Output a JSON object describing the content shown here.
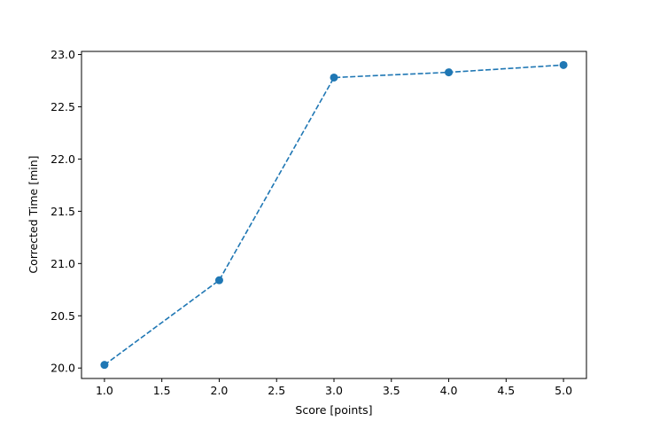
{
  "chart_data": {
    "type": "line",
    "title": "",
    "xlabel": "Score [points]",
    "ylabel": "Corrected Time [min]",
    "x": [
      1,
      2,
      3,
      4,
      5
    ],
    "series": [
      {
        "values": [
          20.03,
          20.84,
          22.78,
          22.83,
          22.9
        ],
        "color": "#1f77b4",
        "linestyle": "dashed",
        "marker": "circle"
      }
    ],
    "xlim": [
      0.8,
      5.2
    ],
    "ylim": [
      19.9,
      23.03
    ],
    "xticks": [
      "1.0",
      "1.5",
      "2.0",
      "2.5",
      "3.0",
      "3.5",
      "4.0",
      "4.5",
      "5.0"
    ],
    "yticks": [
      "20.0",
      "20.5",
      "21.0",
      "21.5",
      "22.0",
      "22.5",
      "23.0"
    ],
    "grid": false,
    "legend": "none"
  }
}
